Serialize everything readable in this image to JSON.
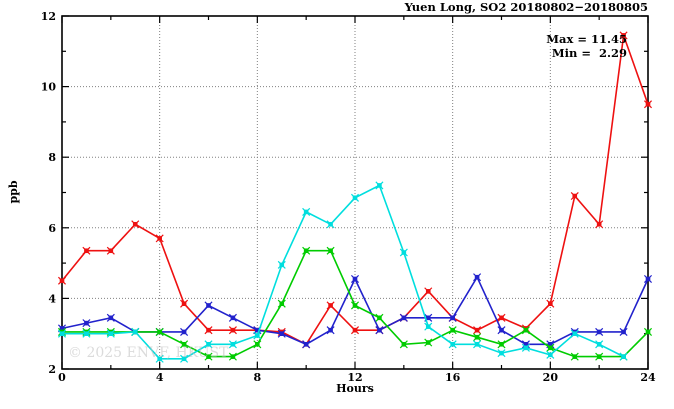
{
  "title": "Yuen Long, SO2 20180802−20180805",
  "stats": {
    "max_label": "Max = 11.45",
    "min_label": "Min =  2.29"
  },
  "watermark": "© 2025 ENVF, HKUST",
  "chart_data": {
    "type": "line",
    "title": "Yuen Long, SO2 20180802−20180805",
    "xlabel": "Hours",
    "ylabel": "ppb",
    "xlim": [
      0,
      24
    ],
    "ylim": [
      2,
      12
    ],
    "x_major_ticks": [
      0,
      4,
      8,
      12,
      16,
      20,
      24
    ],
    "x_minor_step": 2,
    "y_major_ticks": [
      2,
      4,
      6,
      8,
      10,
      12
    ],
    "y_minor_step": 1,
    "x_gridlines": [
      4,
      8,
      12,
      16,
      20
    ],
    "y_gridlines": [
      4,
      6,
      8,
      10
    ],
    "grid_style": "dotted",
    "legend_position": "none",
    "max": 11.45,
    "min": 2.29,
    "series": [
      {
        "name": "red",
        "color": "#ee1111",
        "x": [
          0,
          1,
          2,
          3,
          4,
          5,
          6,
          7,
          8,
          9,
          10,
          11,
          12,
          13,
          14,
          15,
          16,
          17,
          18,
          19,
          20,
          21,
          22,
          23,
          24
        ],
        "values": [
          4.5,
          5.35,
          5.35,
          6.1,
          5.7,
          3.85,
          3.1,
          3.1,
          3.1,
          3.05,
          2.7,
          3.8,
          3.1,
          3.1,
          3.45,
          4.2,
          3.45,
          3.1,
          3.45,
          3.15,
          3.85,
          6.9,
          6.1,
          11.45,
          9.5
        ]
      },
      {
        "name": "blue",
        "color": "#2222cc",
        "x": [
          0,
          1,
          2,
          3,
          4,
          5,
          6,
          7,
          8,
          9,
          10,
          11,
          12,
          13,
          14,
          15,
          16,
          17,
          18,
          19,
          20,
          21,
          22,
          23,
          24
        ],
        "values": [
          3.15,
          3.3,
          3.45,
          3.05,
          3.05,
          3.05,
          3.8,
          3.45,
          3.1,
          3.0,
          2.7,
          3.1,
          4.55,
          3.1,
          3.45,
          3.45,
          3.45,
          4.6,
          3.1,
          2.7,
          2.7,
          3.05,
          3.05,
          3.05,
          4.55
        ]
      },
      {
        "name": "green",
        "color": "#00cc00",
        "x": [
          0,
          1,
          2,
          3,
          4,
          5,
          6,
          7,
          8,
          9,
          10,
          11,
          12,
          13,
          14,
          15,
          16,
          17,
          18,
          19,
          20,
          21,
          22,
          23,
          24
        ],
        "values": [
          3.05,
          3.05,
          3.05,
          3.05,
          3.05,
          2.7,
          2.35,
          2.35,
          2.7,
          3.85,
          5.35,
          5.35,
          3.8,
          3.45,
          2.7,
          2.75,
          3.1,
          2.9,
          2.7,
          3.1,
          2.6,
          2.35,
          2.35,
          2.35,
          3.05
        ]
      },
      {
        "name": "cyan",
        "color": "#00dede",
        "x": [
          0,
          1,
          2,
          3,
          4,
          5,
          6,
          7,
          8,
          9,
          10,
          11,
          12,
          13,
          14,
          15,
          16,
          17,
          18,
          19,
          20,
          21,
          22,
          23
        ],
        "values": [
          3.0,
          3.0,
          3.0,
          3.05,
          2.29,
          2.29,
          2.7,
          2.7,
          2.95,
          4.95,
          6.45,
          6.1,
          6.85,
          7.2,
          5.3,
          3.2,
          2.7,
          2.7,
          2.45,
          2.6,
          2.4,
          3.0,
          2.7,
          2.35
        ]
      }
    ]
  }
}
